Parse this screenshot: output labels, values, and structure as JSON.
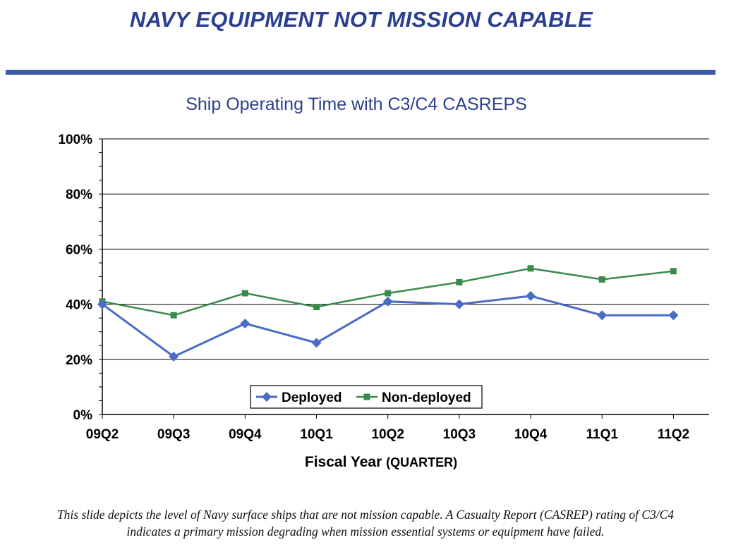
{
  "slide": {
    "title": "NAVY EQUIPMENT NOT MISSION CAPABLE",
    "caption_line1": "This slide depicts the level of Navy surface ships that are not mission capable.  A Casualty Report (CASREP) rating of C3/C4",
    "caption_line2": "indicates a primary mission degrading when mission essential systems or equipment have failed."
  },
  "chart_data": {
    "type": "line",
    "title": "Ship Operating Time with C3/C4 CASREPS",
    "xlabel": "Fiscal Year",
    "xlabel_suffix": "(QUARTER)",
    "ylabel": "",
    "ylim": [
      0,
      100
    ],
    "yticks": [
      "0%",
      "20%",
      "40%",
      "60%",
      "80%",
      "100%"
    ],
    "categories": [
      "09Q2",
      "09Q3",
      "09Q4",
      "10Q1",
      "10Q2",
      "10Q3",
      "10Q4",
      "11Q1",
      "11Q2"
    ],
    "series": [
      {
        "name": "Deployed",
        "color": "#4a6cc4",
        "marker": "diamond",
        "values": [
          40,
          21,
          33,
          26,
          41,
          40,
          43,
          36,
          36
        ]
      },
      {
        "name": "Non-deployed",
        "color": "#3a8a4a",
        "marker": "square",
        "values": [
          41,
          36,
          44,
          39,
          44,
          48,
          53,
          49,
          52
        ]
      }
    ],
    "grid": true,
    "legend_position": "bottom-center"
  }
}
